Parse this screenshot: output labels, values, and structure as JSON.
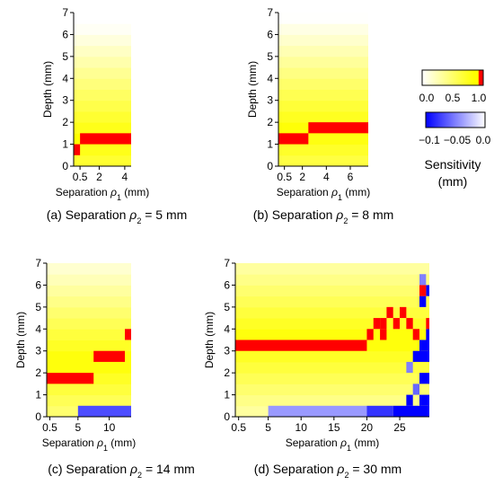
{
  "figure": {
    "colorbars": {
      "positive": {
        "ticks": [
          "0.0",
          "0.5",
          "1.0"
        ],
        "range": [
          0,
          1
        ]
      },
      "negative": {
        "ticks": [
          "−0.1",
          "−0.05",
          "0.0"
        ],
        "range": [
          -0.1,
          0
        ]
      },
      "label_line1": "Sensitivity",
      "label_line2": "(mm)"
    }
  },
  "colors": {
    "white": "#ffffff",
    "yellow": "#ffff00",
    "red": "#ff0000",
    "blue": "#0000ff"
  },
  "chart_data": [
    {
      "type": "heatmap",
      "id": "a",
      "caption": "(a) Separation ρ₂ = 5 mm",
      "xlabel": "Separation ρ₁ (mm)",
      "ylabel": "Depth (mm)",
      "xlim": [
        0,
        4.5
      ],
      "ylim": [
        0,
        7
      ],
      "xticks": [
        "0.5",
        "2",
        "4"
      ],
      "xtick_values": [
        0.5,
        2,
        4
      ],
      "yticks": [
        "0",
        "1",
        "2",
        "3",
        "4",
        "5",
        "6",
        "7"
      ],
      "band_step": 0.5,
      "peak_depth": 1.25,
      "red_cells": [
        {
          "x0": 0,
          "x1": 0.5,
          "y0": 0.5,
          "y1": 1.0
        },
        {
          "x0": 0.5,
          "x1": 4.5,
          "y0": 1.0,
          "y1": 1.5
        }
      ],
      "blue_cells": []
    },
    {
      "type": "heatmap",
      "id": "b",
      "caption": "(b) Separation ρ₂ = 8 mm",
      "xlabel": "Separation ρ₁ (mm)",
      "ylabel": "Depth (mm)",
      "xlim": [
        0,
        7.5
      ],
      "ylim": [
        0,
        7
      ],
      "xticks": [
        "0.5",
        "2",
        "4",
        "6"
      ],
      "xtick_values": [
        0.5,
        2,
        4,
        6
      ],
      "yticks": [
        "0",
        "1",
        "2",
        "3",
        "4",
        "5",
        "6",
        "7"
      ],
      "band_step": 0.5,
      "peak_depth": 1.6,
      "red_cells": [
        {
          "x0": 0,
          "x1": 2.5,
          "y0": 1.0,
          "y1": 1.5
        },
        {
          "x0": 2.5,
          "x1": 7.5,
          "y0": 1.5,
          "y1": 2.0
        }
      ],
      "blue_cells": []
    },
    {
      "type": "heatmap",
      "id": "c",
      "caption": "(c) Separation ρ₂ = 14 mm",
      "xlabel": "Separation ρ₁ (mm)",
      "ylabel": "Depth (mm)",
      "xlim": [
        0,
        13.5
      ],
      "ylim": [
        0,
        7
      ],
      "xticks": [
        "0.5",
        "5",
        "10"
      ],
      "xtick_values": [
        0.5,
        5,
        10
      ],
      "yticks": [
        "0",
        "1",
        "2",
        "3",
        "4",
        "5",
        "6",
        "7"
      ],
      "band_step": 0.5,
      "peak_depth": 2.5,
      "red_cells": [
        {
          "x0": 0,
          "x1": 7.5,
          "y0": 1.5,
          "y1": 2.0
        },
        {
          "x0": 7.5,
          "x1": 12.5,
          "y0": 2.5,
          "y1": 3.0
        },
        {
          "x0": 12.5,
          "x1": 13.5,
          "y0": 3.5,
          "y1": 4.0
        }
      ],
      "blue_cells": [
        {
          "x0": 5,
          "x1": 13.5,
          "y0": 0,
          "y1": 0.5,
          "value": -0.07
        }
      ]
    },
    {
      "type": "heatmap",
      "id": "d",
      "caption": "(d) Separation ρ₂ = 30 mm",
      "xlabel": "Separation ρ₁ (mm)",
      "ylabel": "Depth (mm)",
      "xlim": [
        0,
        29.5
      ],
      "ylim": [
        0,
        7
      ],
      "xticks": [
        "0.5",
        "5",
        "10",
        "15",
        "20",
        "25"
      ],
      "xtick_values": [
        0.5,
        5,
        10,
        15,
        20,
        25
      ],
      "yticks": [
        "0",
        "1",
        "2",
        "3",
        "4",
        "5",
        "6",
        "7"
      ],
      "band_step": 0.5,
      "peak_depth": 3.5,
      "red_cells": [
        {
          "x0": 0,
          "x1": 20,
          "y0": 3.0,
          "y1": 3.5
        },
        {
          "x0": 20,
          "x1": 21,
          "y0": 3.5,
          "y1": 4.0
        },
        {
          "x0": 21,
          "x1": 22,
          "y0": 4.0,
          "y1": 4.5
        },
        {
          "x0": 22,
          "x1": 23,
          "y0": 3.5,
          "y1": 4.0
        },
        {
          "x0": 22,
          "x1": 23,
          "y0": 4.0,
          "y1": 4.5
        },
        {
          "x0": 23,
          "x1": 24,
          "y0": 4.5,
          "y1": 5.0
        },
        {
          "x0": 24,
          "x1": 25,
          "y0": 4.0,
          "y1": 4.5
        },
        {
          "x0": 25,
          "x1": 26,
          "y0": 4.5,
          "y1": 5.0
        },
        {
          "x0": 26,
          "x1": 27,
          "y0": 4.0,
          "y1": 4.5
        },
        {
          "x0": 27,
          "x1": 28,
          "y0": 3.5,
          "y1": 4.0
        },
        {
          "x0": 28,
          "x1": 29,
          "y0": 5.5,
          "y1": 6.0
        },
        {
          "x0": 29,
          "x1": 29.5,
          "y0": 4.0,
          "y1": 4.5
        }
      ],
      "blue_cells": [
        {
          "x0": 5,
          "x1": 20,
          "y0": 0,
          "y1": 0.5,
          "value": -0.04
        },
        {
          "x0": 20,
          "x1": 24,
          "y0": 0,
          "y1": 0.5,
          "value": -0.08
        },
        {
          "x0": 24,
          "x1": 29.5,
          "y0": 0,
          "y1": 0.5,
          "value": -0.1
        },
        {
          "x0": 26,
          "x1": 27,
          "y0": 0.5,
          "y1": 1.0,
          "value": -0.1
        },
        {
          "x0": 28,
          "x1": 29.5,
          "y0": 0.5,
          "y1": 1.0,
          "value": -0.1
        },
        {
          "x0": 27,
          "x1": 28,
          "y0": 1.0,
          "y1": 1.5,
          "value": -0.06
        },
        {
          "x0": 28,
          "x1": 29.5,
          "y0": 1.5,
          "y1": 2.0,
          "value": -0.1
        },
        {
          "x0": 26,
          "x1": 27,
          "y0": 2.0,
          "y1": 2.5,
          "value": -0.05
        },
        {
          "x0": 27,
          "x1": 29.5,
          "y0": 2.5,
          "y1": 3.0,
          "value": -0.1
        },
        {
          "x0": 28,
          "x1": 29.5,
          "y0": 3.0,
          "y1": 3.5,
          "value": -0.1
        },
        {
          "x0": 29,
          "x1": 29.5,
          "y0": 3.5,
          "y1": 4.0,
          "value": -0.1
        },
        {
          "x0": 28,
          "x1": 29,
          "y0": 5.0,
          "y1": 5.5,
          "value": -0.1
        },
        {
          "x0": 29,
          "x1": 29.5,
          "y0": 5.5,
          "y1": 6.0,
          "value": -0.1
        },
        {
          "x0": 28,
          "x1": 29,
          "y0": 6.0,
          "y1": 6.5,
          "value": -0.05
        }
      ]
    }
  ]
}
